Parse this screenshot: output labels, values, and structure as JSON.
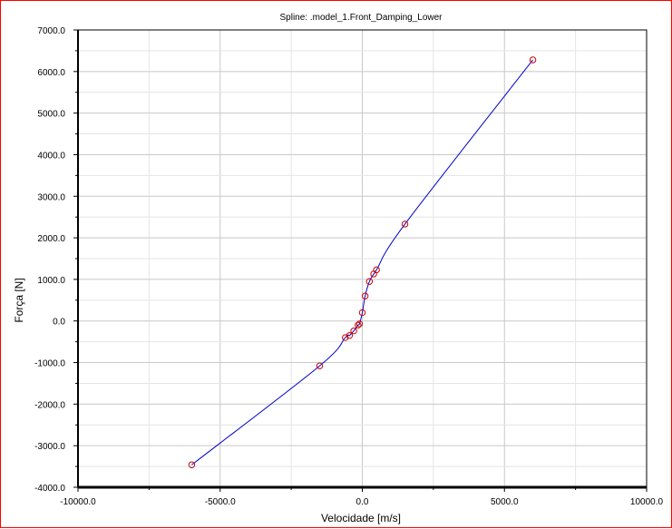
{
  "chart_data": {
    "type": "line",
    "title": "Spline: .model_1.Front_Damping_Lower",
    "xlabel": "Velocidade [m/s]",
    "ylabel": "Força [N]",
    "xlim": [
      -10000,
      10000
    ],
    "ylim": [
      -4000,
      7000
    ],
    "x_ticks": [
      -10000,
      -5000,
      0,
      5000,
      10000
    ],
    "x_tick_labels": [
      "-10000.0",
      "-5000.0",
      "0.0",
      "5000.0",
      "10000.0"
    ],
    "y_ticks": [
      -4000,
      -3000,
      -2000,
      -1000,
      0,
      1000,
      2000,
      3000,
      4000,
      5000,
      6000,
      7000
    ],
    "y_tick_labels": [
      "-4000.0",
      "-3000.0",
      "-2000.0",
      "-1000.0",
      "0.0",
      "1000.0",
      "2000.0",
      "3000.0",
      "4000.0",
      "5000.0",
      "6000.0",
      "7000.0"
    ],
    "grid": true,
    "legend": false,
    "series": [
      {
        "line_color": "#0000cc",
        "marker_color": "#cc0000",
        "marker": "circle-open",
        "x": [
          -6000,
          -1500,
          -600,
          -450,
          -300,
          -150,
          -100,
          0,
          100,
          250,
          400,
          500,
          1500,
          6000
        ],
        "y": [
          -3460,
          -1080,
          -400,
          -350,
          -240,
          -100,
          -70,
          200,
          600,
          950,
          1130,
          1230,
          2330,
          6280
        ]
      }
    ]
  }
}
